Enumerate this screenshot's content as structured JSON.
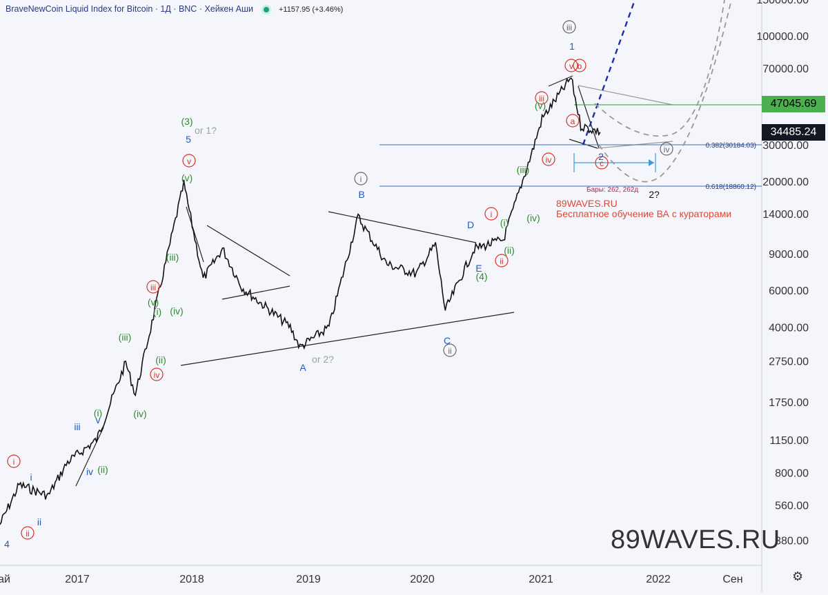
{
  "header": {
    "title": "BraveNewCoin Liquid Index for Bitcoin · 1Д · BNC · Хейкен Аши",
    "change": "+1157.95 (+3.46%)"
  },
  "chart_data": {
    "type": "line",
    "title": "BraveNewCoin Liquid Index for Bitcoin",
    "interval": "1Д",
    "source": "BNC",
    "style": "Хейкен Аши",
    "y_scale": "log",
    "y_ticks": [
      "150000.00",
      "100000.00",
      "70000.00",
      "30000.00",
      "20000.00",
      "14000.00",
      "9000.00",
      "6000.00",
      "4000.00",
      "2750.00",
      "1750.00",
      "1150.00",
      "800.00",
      "560.00",
      "380.00"
    ],
    "x_ticks": [
      "ай",
      "2017",
      "2018",
      "2019",
      "2020",
      "2021",
      "2022",
      "Сен"
    ],
    "price_labels": [
      {
        "value": "47045.69",
        "color": "#4caf50",
        "text_color": "#000000"
      },
      {
        "value": "34485.24",
        "color": "#131722",
        "text_color": "#ffffff"
      }
    ],
    "fib_levels": [
      {
        "label": "0.382(30184.03)",
        "value": 30184.03
      },
      {
        "label": "0.618(18860.12)",
        "value": 18860.12
      }
    ],
    "bars_note": "Бары: 262, 262д",
    "series": [
      {
        "name": "BTC (approx. trend points)",
        "points": [
          [
            "2016-05",
            450
          ],
          [
            "2016-07",
            700
          ],
          [
            "2016-10",
            620
          ],
          [
            "2016-12",
            900
          ],
          [
            "2017-03",
            1150
          ],
          [
            "2017-06",
            2700
          ],
          [
            "2017-07",
            1900
          ],
          [
            "2017-09",
            4800
          ],
          [
            "2017-12",
            19500
          ],
          [
            "2018-02",
            6800
          ],
          [
            "2018-04",
            9500
          ],
          [
            "2018-06",
            6200
          ],
          [
            "2018-11",
            4000
          ],
          [
            "2018-12",
            3200
          ],
          [
            "2019-03",
            4000
          ],
          [
            "2019-06",
            13500
          ],
          [
            "2019-09",
            8000
          ],
          [
            "2019-12",
            7200
          ],
          [
            "2020-02",
            10000
          ],
          [
            "2020-03",
            4800
          ],
          [
            "2020-06",
            9500
          ],
          [
            "2020-09",
            10500
          ],
          [
            "2020-12",
            28000
          ],
          [
            "2021-01",
            40000
          ],
          [
            "2021-04",
            63000
          ],
          [
            "2021-05",
            37000
          ],
          [
            "2021-07",
            34485
          ]
        ]
      }
    ],
    "wave_labels": [
      {
        "text": "(3)",
        "color": "#2e8b2e"
      },
      {
        "text": "or 1?",
        "color": "#9aa0a6"
      },
      {
        "text": "5",
        "color": "#1e5bbf"
      },
      {
        "text": "v",
        "color": "#d93025",
        "circle": true
      },
      {
        "text": "(v)",
        "color": "#2e8b2e"
      },
      {
        "text": "(iii)",
        "color": "#2e8b2e"
      },
      {
        "text": "iii",
        "color": "#d93025",
        "circle": true
      },
      {
        "text": "(v)",
        "color": "#2e8b2e"
      },
      {
        "text": "(i)",
        "color": "#2e8b2e"
      },
      {
        "text": "(iv)",
        "color": "#2e8b2e"
      },
      {
        "text": "(ii)",
        "color": "#2e8b2e"
      },
      {
        "text": "iv",
        "color": "#d93025",
        "circle": true
      },
      {
        "text": "(iii)",
        "color": "#2e8b2e"
      },
      {
        "text": "(iv)",
        "color": "#2e8b2e"
      },
      {
        "text": "(i)",
        "color": "#2e8b2e"
      },
      {
        "text": "v",
        "color": "#1e5bbf"
      },
      {
        "text": "iii",
        "color": "#1e5bbf"
      },
      {
        "text": "iv",
        "color": "#1e5bbf"
      },
      {
        "text": "(ii)",
        "color": "#2e8b2e"
      },
      {
        "text": "i",
        "color": "#d93025",
        "circle": true
      },
      {
        "text": "i",
        "color": "#1e5bbf"
      },
      {
        "text": "ii",
        "color": "#1e5bbf"
      },
      {
        "text": "ii",
        "color": "#d93025",
        "circle": true
      },
      {
        "text": "4",
        "color": "#1e5bbf"
      },
      {
        "text": "A",
        "color": "#1e5bbf"
      },
      {
        "text": "or 2?",
        "color": "#9aa0a6"
      },
      {
        "text": "i",
        "color": "#666666",
        "circle": true
      },
      {
        "text": "B",
        "color": "#1e5bbf"
      },
      {
        "text": "C",
        "color": "#1e5bbf"
      },
      {
        "text": "ii",
        "color": "#666666",
        "circle": true
      },
      {
        "text": "D",
        "color": "#1e5bbf"
      },
      {
        "text": "E",
        "color": "#1e5bbf"
      },
      {
        "text": "(4)",
        "color": "#2e8b2e"
      },
      {
        "text": "i",
        "color": "#d93025",
        "circle": true
      },
      {
        "text": "(i)",
        "color": "#2e8b2e"
      },
      {
        "text": "(ii)",
        "color": "#2e8b2e"
      },
      {
        "text": "ii",
        "color": "#d93025",
        "circle": true
      },
      {
        "text": "(iv)",
        "color": "#2e8b2e"
      },
      {
        "text": "(iii)",
        "color": "#2e8b2e"
      },
      {
        "text": "iii",
        "color": "#d93025",
        "circle": true
      },
      {
        "text": "(v)",
        "color": "#2e8b2e"
      },
      {
        "text": "iv",
        "color": "#d93025",
        "circle": true
      },
      {
        "text": "iii",
        "color": "#666666",
        "circle": true
      },
      {
        "text": "1",
        "color": "#1e5bbf"
      },
      {
        "text": "v",
        "color": "#d93025",
        "circle": true
      },
      {
        "text": "b",
        "color": "#d93025",
        "circle": true
      },
      {
        "text": "a",
        "color": "#d93025",
        "circle": true
      },
      {
        "text": "c",
        "color": "#d93025",
        "circle": true
      },
      {
        "text": "2",
        "color": "#1e5bbf"
      },
      {
        "text": "2?",
        "color": "#111111"
      },
      {
        "text": "iv",
        "color": "#666666",
        "circle": true
      }
    ]
  },
  "promo": {
    "site": "89WAVES.RU",
    "text": "Бесплатное обучение ВА с кураторами"
  },
  "watermark": "89WAVES.RU",
  "icons": {
    "settings": "gear-icon",
    "status": "status-dot-icon"
  }
}
